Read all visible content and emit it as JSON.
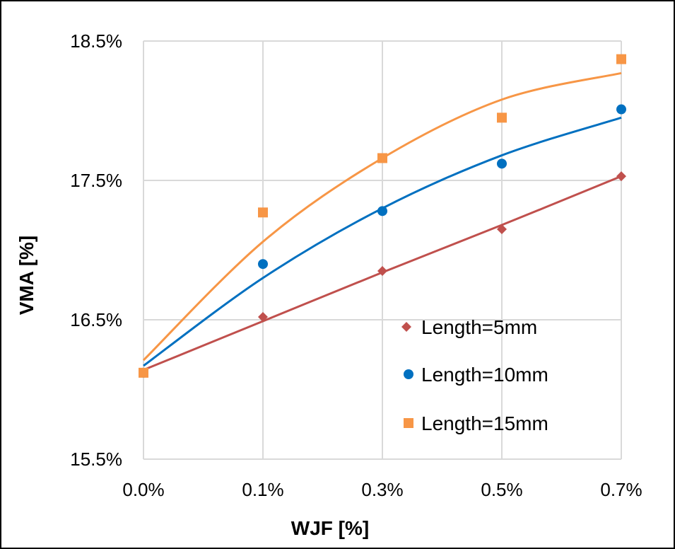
{
  "chart_data": {
    "type": "scatter",
    "title": "",
    "xlabel": "WJF [%]",
    "ylabel": "VMA [%]",
    "x_categories": [
      "0.0%",
      "0.1%",
      "0.3%",
      "0.5%",
      "0.7%"
    ],
    "ylim": [
      15.5,
      18.5
    ],
    "y_ticks": [
      15.5,
      16.5,
      17.5,
      18.5
    ],
    "y_tick_labels": [
      "15.5%",
      "16.5%",
      "17.5%",
      "18.5%"
    ],
    "grid": true,
    "legend_position": "right-center",
    "series": [
      {
        "name": "Length=5mm",
        "marker": "diamond",
        "color": "#c0504d",
        "values": [
          16.12,
          16.52,
          16.85,
          17.15,
          17.53
        ],
        "trendline": [
          16.14,
          16.49,
          16.84,
          17.18,
          17.53
        ]
      },
      {
        "name": "Length=10mm",
        "marker": "circle",
        "color": "#0070c0",
        "values": [
          16.12,
          16.9,
          17.28,
          17.62,
          18.01
        ],
        "trendline": [
          16.17,
          16.8,
          17.3,
          17.68,
          17.95
        ]
      },
      {
        "name": "Length=15mm",
        "marker": "square",
        "color": "#f79646",
        "values": [
          16.12,
          17.27,
          17.66,
          17.95,
          18.37
        ],
        "trendline": [
          16.21,
          17.06,
          17.66,
          18.08,
          18.27
        ]
      }
    ]
  }
}
